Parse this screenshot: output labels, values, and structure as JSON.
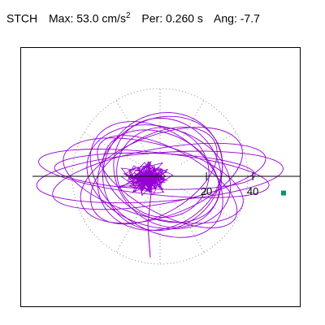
{
  "header": {
    "station": "STCH",
    "max_label": "Max:",
    "max_value": "53.0",
    "max_unit": "cm/s",
    "max_unit_exp": "2",
    "period_label": "Per:",
    "period_value": "0.260 s",
    "angle_label": "Ang:",
    "angle_value": "-7.7"
  },
  "chart_data": {
    "type": "line",
    "title": "",
    "xlabel": "",
    "ylabel": "",
    "polar_grid": true,
    "grid_radii": [
      20,
      40
    ],
    "grid_max_radius": 53.0,
    "radial_tick_labels": [
      "20",
      "40"
    ],
    "peak_angle_deg": -7.7,
    "peak_magnitude": 53.0,
    "peak_marker_color": "#009966",
    "trace_color": "#9400d3",
    "axis_color": "#000000",
    "grid_color": "#888888"
  }
}
